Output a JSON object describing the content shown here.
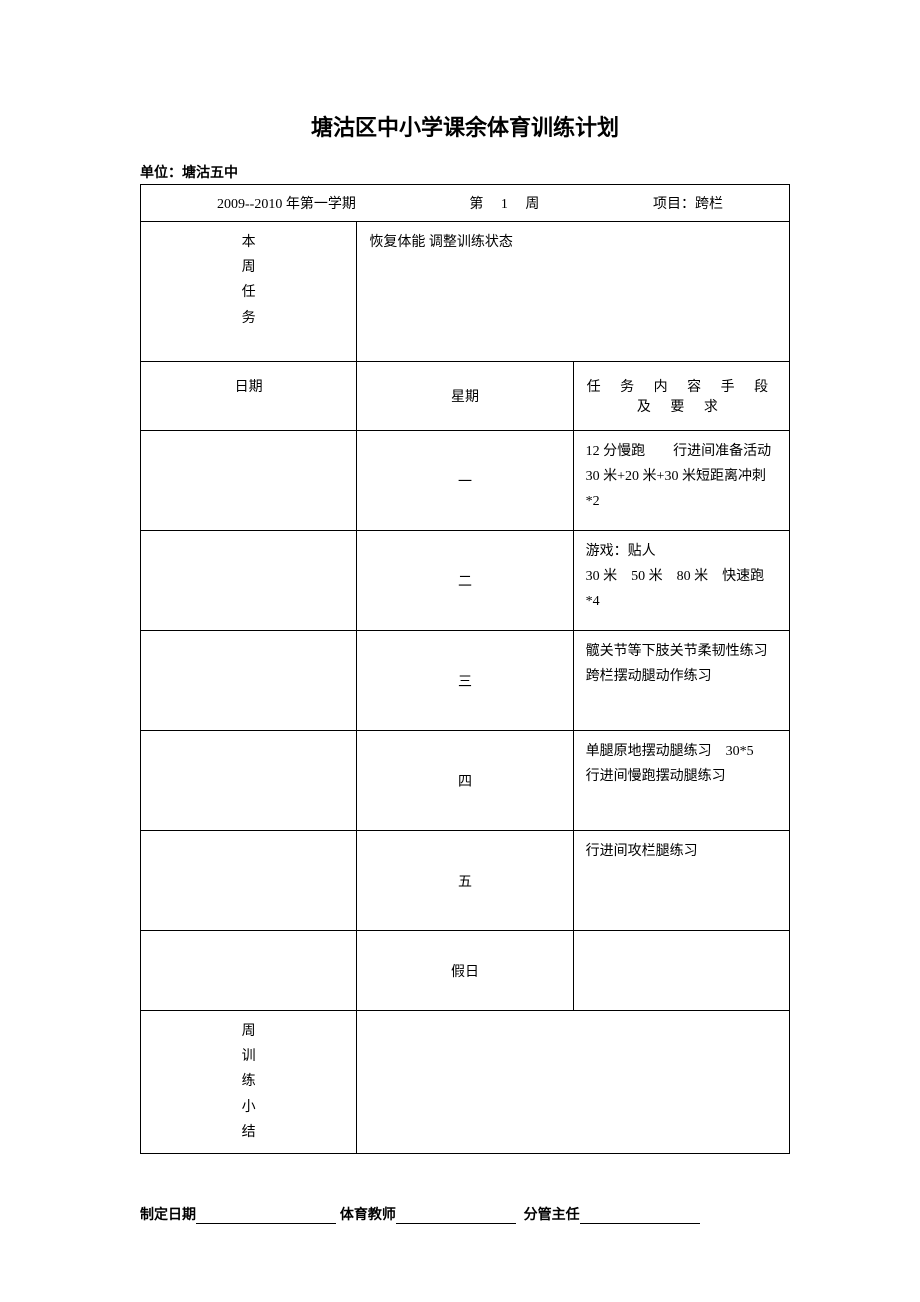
{
  "document": {
    "title": "塘沽区中小学课余体育训练计划",
    "unit_label": "单位：塘沽五中",
    "header": {
      "semester": "2009--2010 年第一学期",
      "week_prefix": "第",
      "week_num": "1",
      "week_suffix": "周",
      "project": "项目：跨栏"
    },
    "task_label": "本周任务",
    "task_content": "恢复体能  调整训练状态",
    "date_label": "日期",
    "day_label": "星期",
    "content_header": "任 务 内 容 手 段 及 要 求",
    "days": [
      {
        "day": "一",
        "content_line1": "12 分慢跑　　行进间准备活动",
        "content_line2": "30 米+20 米+30 米短距离冲刺*2"
      },
      {
        "day": "二",
        "content_line1": "游戏：贴人",
        "content_line2": "30 米　50 米　80 米　快速跑*4"
      },
      {
        "day": "三",
        "content_line1": "髋关节等下肢关节柔韧性练习",
        "content_line2": "跨栏摆动腿动作练习"
      },
      {
        "day": "四",
        "content_line1": "单腿原地摆动腿练习　30*5",
        "content_line2": "行进间慢跑摆动腿练习"
      },
      {
        "day": "五",
        "content_line1": "行进间攻栏腿练习",
        "content_line2": ""
      },
      {
        "day": "假日",
        "content_line1": "",
        "content_line2": ""
      }
    ],
    "summary_label": "周训练小结",
    "footer": {
      "date_label": "制定日期",
      "teacher_label": "体育教师",
      "supervisor_label": "分管主任"
    }
  },
  "styling": {
    "page_bg": "#ffffff",
    "text_color": "#000000",
    "border_color": "#000000",
    "title_fontsize": 22,
    "body_fontsize": 14,
    "col_widths": {
      "task_col": 38,
      "day_col": 40
    }
  }
}
